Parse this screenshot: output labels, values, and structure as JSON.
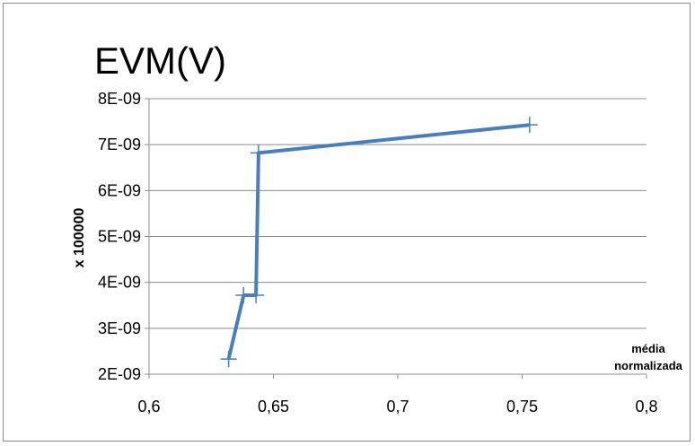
{
  "chart_data": {
    "type": "line",
    "title": "EVM(V)",
    "ylabel": "x 100000",
    "xlabel_lines": [
      "média",
      "normalizada"
    ],
    "x_ticks": [
      "0,6",
      "0,65",
      "0,7",
      "0,75",
      "0,8"
    ],
    "x_tick_values": [
      0.6,
      0.65,
      0.7,
      0.75,
      0.8
    ],
    "y_ticks": [
      "2E-09",
      "3E-09",
      "4E-09",
      "5E-09",
      "6E-09",
      "7E-09",
      "8E-09"
    ],
    "y_tick_values": [
      2e-09,
      3e-09,
      4e-09,
      5e-09,
      6e-09,
      7e-09,
      8e-09
    ],
    "xlim": [
      0.6,
      0.8
    ],
    "ylim": [
      2e-09,
      8e-09
    ],
    "grid": "horizontal",
    "series": [
      {
        "color": "#4a7ebb",
        "x": [
          0.632,
          0.638,
          0.643,
          0.644,
          0.753
        ],
        "y": [
          2.33e-09,
          3.72e-09,
          3.72e-09,
          6.82e-09,
          7.43e-09
        ]
      }
    ]
  }
}
